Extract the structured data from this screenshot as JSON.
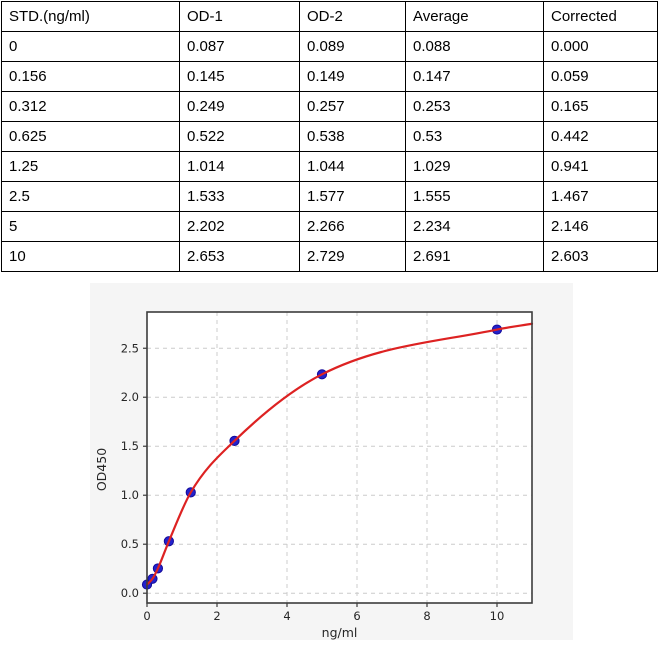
{
  "table": {
    "headers": [
      "STD.(ng/ml)",
      "OD-1",
      "OD-2",
      "Average",
      "Corrected"
    ],
    "rows": [
      [
        "0",
        "0.087",
        "0.089",
        "0.088",
        "0.000"
      ],
      [
        "0.156",
        "0.145",
        "0.149",
        "0.147",
        "0.059"
      ],
      [
        "0.312",
        "0.249",
        "0.257",
        "0.253",
        "0.165"
      ],
      [
        "0.625",
        "0.522",
        "0.538",
        "0.53",
        "0.442"
      ],
      [
        "1.25",
        "1.014",
        "1.044",
        "1.029",
        "0.941"
      ],
      [
        "2.5",
        "1.533",
        "1.577",
        "1.555",
        "1.467"
      ],
      [
        "5",
        "2.202",
        "2.266",
        "2.234",
        "2.146"
      ],
      [
        "10",
        "2.653",
        "2.729",
        "2.691",
        "2.603"
      ]
    ]
  },
  "chart_data": {
    "type": "scatter",
    "title": "",
    "xlabel": "ng/ml",
    "ylabel": "OD450",
    "x": [
      0,
      0.156,
      0.312,
      0.625,
      1.25,
      2.5,
      5,
      10
    ],
    "y": [
      0.088,
      0.147,
      0.253,
      0.53,
      1.029,
      1.555,
      2.234,
      2.691
    ],
    "curve_end": {
      "x": 11,
      "y": 2.75
    },
    "xlim": [
      0,
      11
    ],
    "ylim": [
      -0.1,
      2.87
    ],
    "x_ticks": [
      0,
      2,
      4,
      6,
      8,
      10
    ],
    "x_tick_labels": [
      "0",
      "2",
      "4",
      "6",
      "8",
      "10"
    ],
    "y_ticks": [
      0,
      0.5,
      1,
      1.5,
      2,
      2.5
    ],
    "y_tick_labels": [
      "0.0",
      "0.5",
      "1.0",
      "1.5",
      "2.0",
      "2.5"
    ],
    "grid": true,
    "legend": "none",
    "colors": {
      "curve": "#dd2222",
      "marker_fill": "#2222cc",
      "marker_edge": "#140a9a",
      "grid_line": "#cccccc",
      "spine": "#3c3c3c",
      "tick_text": "#262626",
      "figure_bg": "#f5f5f5",
      "plot_bg": "#ffffff"
    }
  }
}
